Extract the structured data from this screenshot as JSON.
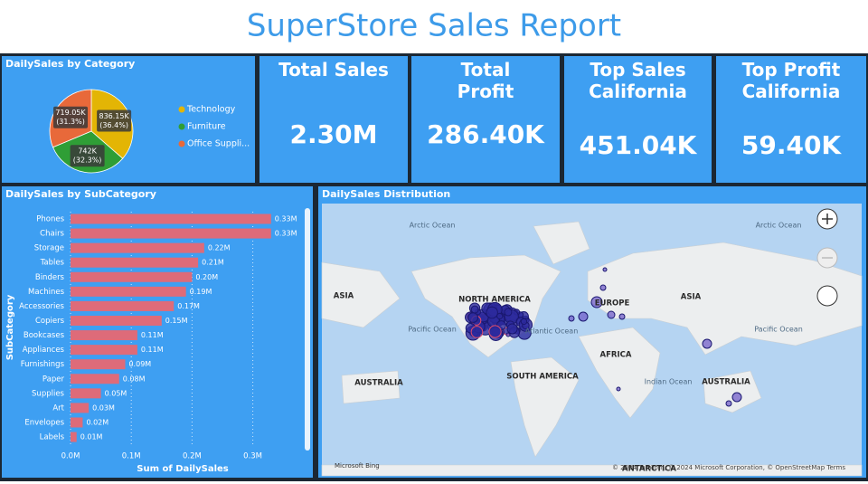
{
  "title": "SuperStore Sales Report",
  "cards": [
    {
      "title": "Total Sales",
      "value": "2.30M"
    },
    {
      "title": "Total Profit",
      "value": "286.40K"
    },
    {
      "title": "Top Sales California",
      "value": "451.04K"
    },
    {
      "title": "Top Profit California",
      "value": "59.40K"
    }
  ],
  "chart_data": [
    {
      "type": "pie",
      "title": "DailySales by Category",
      "categories": [
        "Technology",
        "Furniture",
        "Office Suppli..."
      ],
      "values": [
        836150,
        742000,
        719050
      ],
      "value_labels": [
        "836.15K",
        "742K",
        "719.05K"
      ],
      "percent_labels": [
        "(36.4%)",
        "(32.3%)",
        "(31.3%)"
      ],
      "colors": [
        "#e3b505",
        "#2f9e36",
        "#e8693a"
      ],
      "legend": "right"
    },
    {
      "type": "hbar",
      "title": "DailySales by SubCategory",
      "categories": [
        "Phones",
        "Chairs",
        "Storage",
        "Tables",
        "Binders",
        "Machines",
        "Accessories",
        "Copiers",
        "Bookcases",
        "Appliances",
        "Furnishings",
        "Paper",
        "Supplies",
        "Art",
        "Envelopes",
        "Labels"
      ],
      "values": [
        0.33,
        0.33,
        0.22,
        0.21,
        0.2,
        0.19,
        0.17,
        0.15,
        0.11,
        0.11,
        0.09,
        0.08,
        0.05,
        0.03,
        0.02,
        0.01
      ],
      "value_labels": [
        "0.33M",
        "0.33M",
        "0.22M",
        "0.21M",
        "0.20M",
        "0.19M",
        "0.17M",
        "0.15M",
        "0.11M",
        "0.11M",
        "0.09M",
        "0.08M",
        "0.05M",
        "0.03M",
        "0.02M",
        "0.01M"
      ],
      "color": "#de6b79",
      "xlabel": "Sum of DailySales",
      "ylabel": "SubCategory",
      "xlim": [
        0,
        0.375
      ],
      "xticks": [
        {
          "value": 0,
          "label": "0.0M"
        },
        {
          "value": 0.1,
          "label": "0.1M"
        },
        {
          "value": 0.2,
          "label": "0.2M"
        },
        {
          "value": 0.3,
          "label": "0.3M"
        }
      ],
      "grid": true
    }
  ],
  "map": {
    "title": "DailySales Distribution",
    "labels": [
      "Arctic Ocean",
      "Arctic Ocean",
      "ASIA",
      "NORTH AMERICA",
      "EUROPE",
      "ASIA",
      "Pacific Ocean",
      "Atlantic Ocean",
      "Pacific Ocean",
      "AFRICA",
      "SOUTH AMERICA",
      "Indian Ocean",
      "AUSTRALIA",
      "AUSTRALIA",
      "ANTARCTICA"
    ],
    "provider": "Microsoft Bing",
    "attribution": "© 2024 TomTom, © 2024 Microsoft Corporation, © OpenStreetMap Terms"
  }
}
